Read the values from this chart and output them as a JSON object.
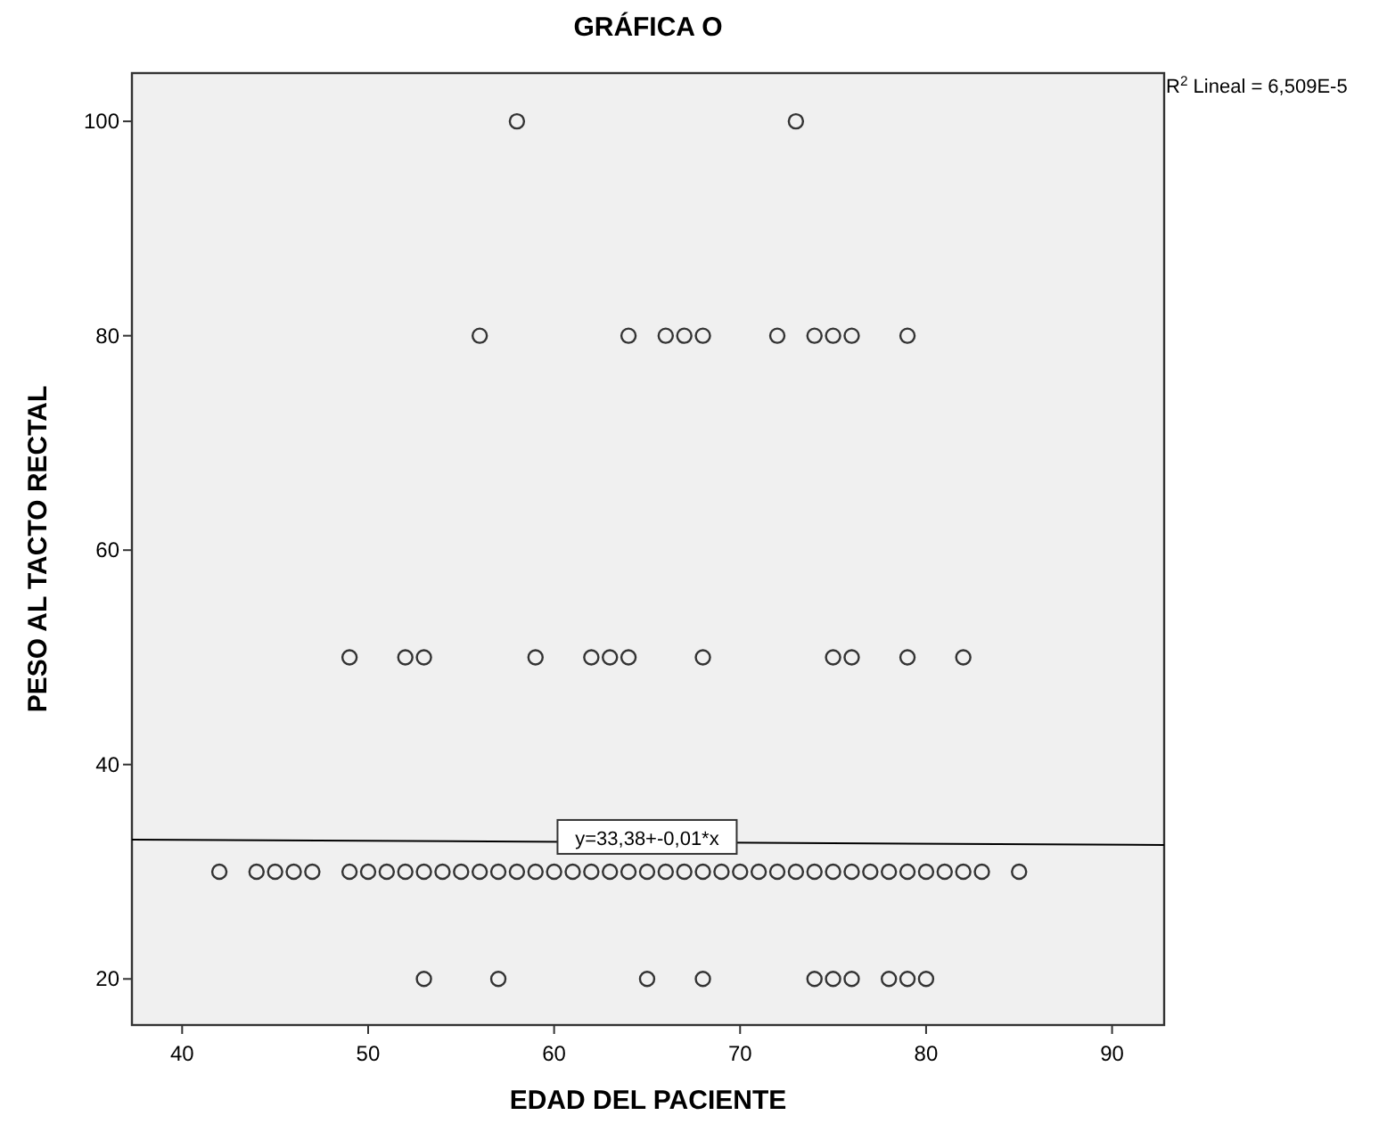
{
  "chart_data": {
    "type": "scatter",
    "title": "GRÁFICA O",
    "xlabel": "EDAD DEL PACIENTE",
    "ylabel": "PESO AL TACTO RECTAL",
    "xlim": [
      37.3,
      92.8
    ],
    "xticks": [
      40,
      50,
      60,
      70,
      80,
      90
    ],
    "ylim": [
      15.7,
      104.5
    ],
    "yticks": [
      20,
      40,
      60,
      80,
      100
    ],
    "grid": false,
    "series": [
      {
        "marker": "circle",
        "color": "#333333",
        "x": [
          58,
          73,
          56,
          64,
          66,
          67,
          68,
          72,
          74,
          75,
          76,
          79,
          49,
          52,
          53,
          59,
          62,
          63,
          64,
          68,
          75,
          76,
          79,
          82,
          42,
          44,
          45,
          46,
          47,
          49,
          50,
          51,
          52,
          53,
          54,
          55,
          56,
          57,
          58,
          59,
          60,
          61,
          62,
          63,
          64,
          65,
          66,
          67,
          68,
          69,
          70,
          71,
          72,
          73,
          74,
          75,
          76,
          77,
          78,
          79,
          80,
          81,
          82,
          83,
          85,
          53,
          57,
          65,
          68,
          74,
          75,
          76,
          78,
          79,
          80
        ],
        "values": [
          100,
          100,
          80,
          80,
          80,
          80,
          80,
          80,
          80,
          80,
          80,
          80,
          50,
          50,
          50,
          50,
          50,
          50,
          50,
          50,
          50,
          50,
          50,
          50,
          30,
          30,
          30,
          30,
          30,
          30,
          30,
          30,
          30,
          30,
          30,
          30,
          30,
          30,
          30,
          30,
          30,
          30,
          30,
          30,
          30,
          30,
          30,
          30,
          30,
          30,
          30,
          30,
          30,
          30,
          30,
          30,
          30,
          30,
          30,
          30,
          30,
          30,
          30,
          30,
          30,
          20,
          20,
          20,
          20,
          20,
          20,
          20,
          20,
          20,
          20
        ]
      },
      {
        "type": "line",
        "color": "#000000",
        "x": [
          37.3,
          92.8
        ],
        "values": [
          33.0,
          32.5
        ]
      }
    ],
    "annotations": [
      {
        "text": "y=33,38+-0,01*x",
        "x": 65,
        "y": 33
      },
      "R$^{2}$ Lineal = 6,509E-5"
    ]
  }
}
